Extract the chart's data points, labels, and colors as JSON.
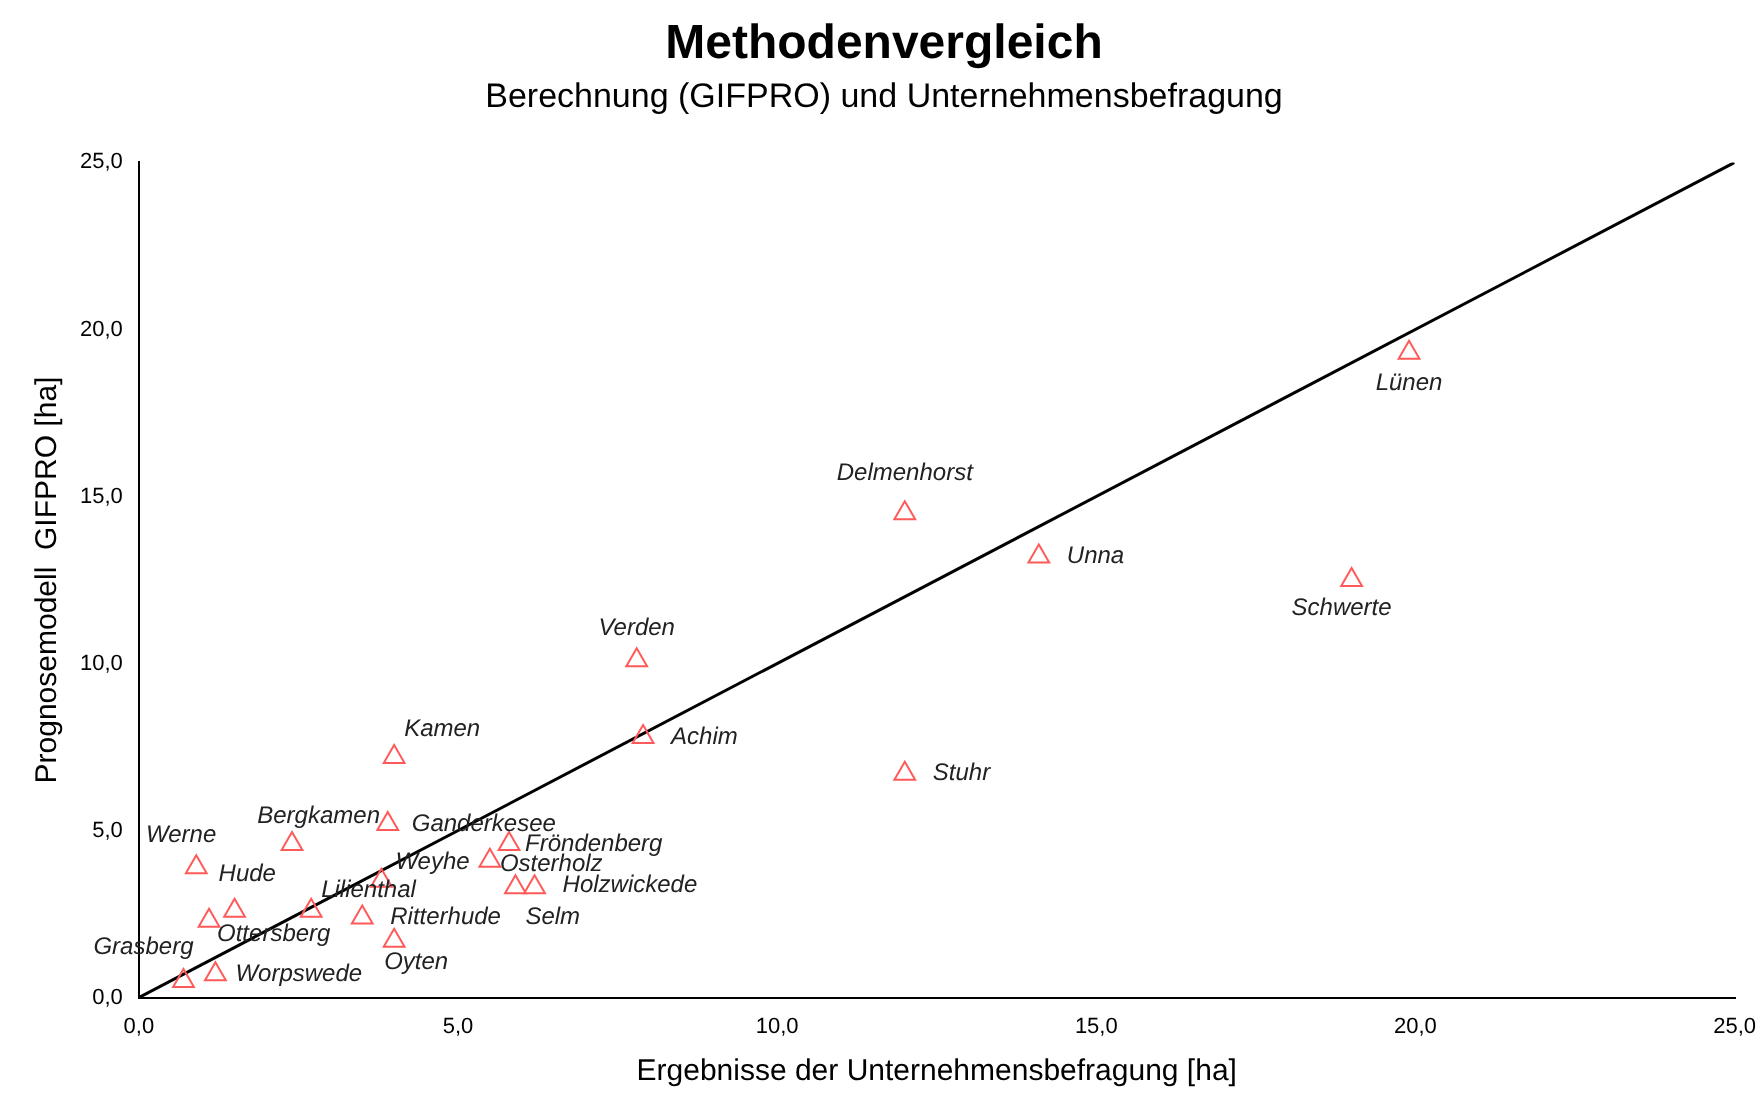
{
  "chart_data": {
    "type": "scatter",
    "title": "Methodenvergleich",
    "subtitle": "Berechnung (GIFPRO) und Unternehmensbefragung",
    "xlabel": "Ergebnisse der Unternehmensbefragung [ha]",
    "ylabel": "Prognosemodell  GIFPRO [ha]",
    "xlim": [
      0,
      25
    ],
    "ylim": [
      0,
      25
    ],
    "xticks": [
      {
        "value": 0,
        "label": "0,0"
      },
      {
        "value": 5,
        "label": "5,0"
      },
      {
        "value": 10,
        "label": "10,0"
      },
      {
        "value": 15,
        "label": "15,0"
      },
      {
        "value": 20,
        "label": "20,0"
      },
      {
        "value": 25,
        "label": "25,0"
      }
    ],
    "yticks": [
      {
        "value": 0,
        "label": "0,0"
      },
      {
        "value": 5,
        "label": "5,0"
      },
      {
        "value": 10,
        "label": "10,0"
      },
      {
        "value": 15,
        "label": "15,0"
      },
      {
        "value": 20,
        "label": "20,0"
      },
      {
        "value": 25,
        "label": "25,0"
      }
    ],
    "grid": false,
    "legend": false,
    "marker": "triangle",
    "series": [
      {
        "color": "#ff5a5a",
        "x": [
          19.9,
          12.0,
          14.1,
          19.0,
          7.8,
          7.9,
          12.0,
          4.0,
          2.4,
          3.9,
          0.9,
          5.8,
          5.5,
          3.8,
          2.7,
          1.5,
          1.1,
          3.5,
          4.0,
          5.9,
          6.2,
          0.7,
          1.2
        ],
        "values": [
          19.3,
          14.5,
          13.2,
          12.5,
          10.1,
          7.8,
          6.7,
          7.2,
          4.6,
          5.2,
          3.9,
          4.6,
          4.1,
          3.5,
          2.6,
          2.6,
          2.3,
          2.4,
          1.7,
          3.3,
          3.3,
          0.5,
          0.7
        ]
      },
      {
        "type": "line",
        "color": "#000000",
        "x": [
          0,
          25
        ],
        "values": [
          0,
          25
        ],
        "marker": "none"
      }
    ],
    "annotations": [
      {
        "text": "Lünen",
        "x": 19.9,
        "y": 19.3
      },
      {
        "text": "Delmenhorst",
        "x": 12.0,
        "y": 14.5
      },
      {
        "text": "Unna",
        "x": 14.1,
        "y": 13.2
      },
      {
        "text": "Schwerte",
        "x": 19.0,
        "y": 12.5
      },
      {
        "text": "Verden",
        "x": 7.8,
        "y": 10.1
      },
      {
        "text": "Achim",
        "x": 7.9,
        "y": 7.8
      },
      {
        "text": "Stuhr",
        "x": 12.0,
        "y": 6.7
      },
      {
        "text": "Kamen",
        "x": 4.0,
        "y": 7.2
      },
      {
        "text": "Bergkamen",
        "x": 2.4,
        "y": 4.6
      },
      {
        "text": "Ganderkesee",
        "x": 3.9,
        "y": 5.2
      },
      {
        "text": "Werne",
        "x": 0.9,
        "y": 3.9
      },
      {
        "text": "Fröndenberg",
        "x": 5.8,
        "y": 4.6
      },
      {
        "text": "Osterholz",
        "x": 5.5,
        "y": 4.1
      },
      {
        "text": "Weyhe",
        "x": 3.8,
        "y": 3.5
      },
      {
        "text": "Lilienthal",
        "x": 2.7,
        "y": 2.6
      },
      {
        "text": "Hude",
        "x": 1.5,
        "y": 2.6
      },
      {
        "text": "Ottersberg",
        "x": 1.1,
        "y": 2.3
      },
      {
        "text": "Ritterhude",
        "x": 3.5,
        "y": 2.4
      },
      {
        "text": "Oyten",
        "x": 4.0,
        "y": 1.7
      },
      {
        "text": "Selm",
        "x": 5.9,
        "y": 3.3
      },
      {
        "text": "Holzwickede",
        "x": 6.2,
        "y": 3.3
      },
      {
        "text": "Grasberg",
        "x": 0.7,
        "y": 0.5
      },
      {
        "text": "Worpswede",
        "x": 1.2,
        "y": 0.7
      }
    ]
  }
}
